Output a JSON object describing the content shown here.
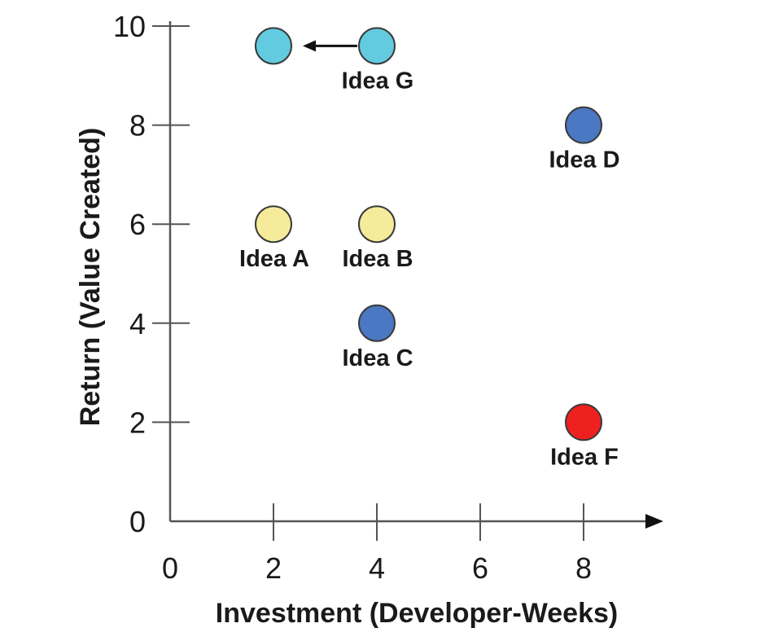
{
  "chart_data": {
    "type": "scatter",
    "xlabel": "Investment (Developer-Weeks)",
    "ylabel": "Return (Value Created)",
    "xlim": [
      0,
      9.4
    ],
    "ylim": [
      0,
      10
    ],
    "x_ticks": [
      0,
      2,
      4,
      6,
      8
    ],
    "y_ticks": [
      0,
      2,
      4,
      6,
      8,
      10
    ],
    "grid": false,
    "points": [
      {
        "label": "Idea A",
        "x": 2,
        "y": 6,
        "color": "#f5eb9a"
      },
      {
        "label": "Idea B",
        "x": 4,
        "y": 6,
        "color": "#f5eb9a"
      },
      {
        "label": "Idea C",
        "x": 4,
        "y": 4,
        "color": "#4a78c2"
      },
      {
        "label": "Idea D",
        "x": 8,
        "y": 8,
        "color": "#4a78c2"
      },
      {
        "label": "Idea F",
        "x": 8,
        "y": 2,
        "color": "#ee2020"
      },
      {
        "label": "Idea G",
        "x": 4,
        "y": 9.6,
        "color": "#62cbe0"
      },
      {
        "label": "",
        "x": 2,
        "y": 9.6,
        "color": "#62cbe0"
      }
    ],
    "annotations": [
      {
        "type": "arrow",
        "from": [
          4,
          9.6
        ],
        "to": [
          2,
          9.6
        ]
      }
    ]
  }
}
